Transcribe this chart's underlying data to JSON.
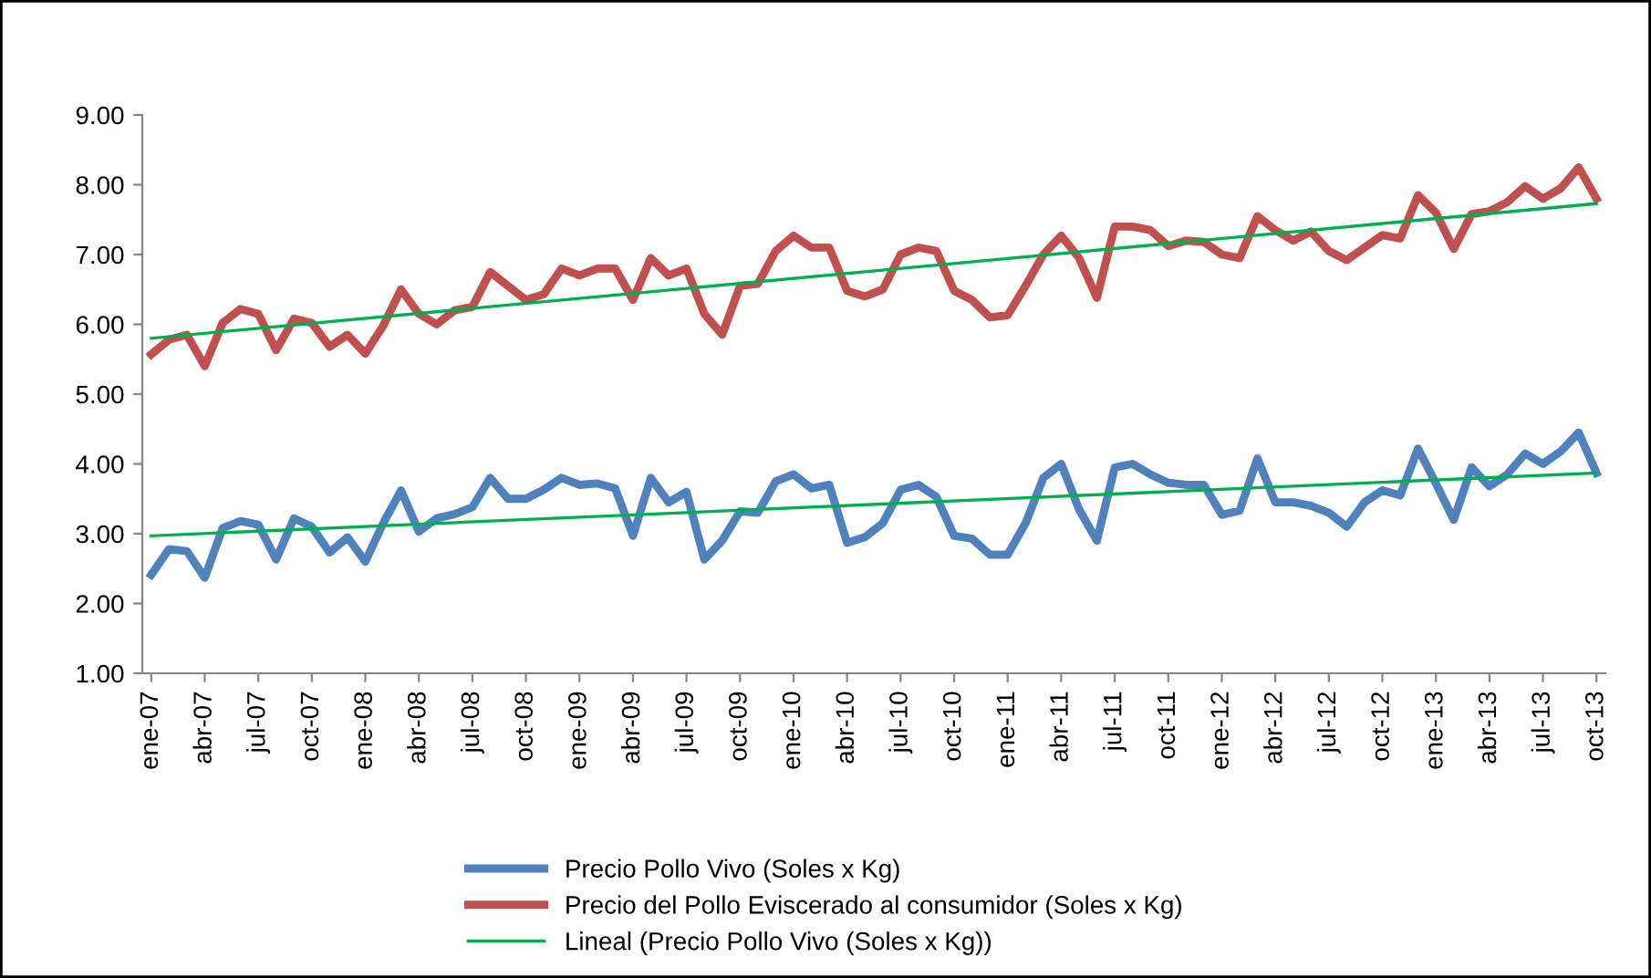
{
  "chart_data": {
    "type": "line",
    "categories": [
      "ene-07",
      null,
      null,
      "abr-07",
      null,
      null,
      "jul-07",
      null,
      null,
      "oct-07",
      null,
      null,
      "ene-08",
      null,
      null,
      "abr-08",
      null,
      null,
      "jul-08",
      null,
      null,
      "oct-08",
      null,
      null,
      "ene-09",
      null,
      null,
      "abr-09",
      null,
      null,
      "jul-09",
      null,
      null,
      "oct-09",
      null,
      null,
      "ene-10",
      null,
      null,
      "abr-10",
      null,
      null,
      "jul-10",
      null,
      null,
      "oct-10",
      null,
      null,
      "ene-11",
      null,
      null,
      "abr-11",
      null,
      null,
      "jul-11",
      null,
      null,
      "oct-11",
      null,
      null,
      "ene-12",
      null,
      null,
      "abr-12",
      null,
      null,
      "jul-12",
      null,
      null,
      "oct-12",
      null,
      null,
      "ene-13",
      null,
      null,
      "abr-13",
      null,
      null,
      "jul-13",
      null,
      null,
      "oct-13"
    ],
    "series": [
      {
        "name": "Precio Pollo Vivo (Soles x Kg)",
        "color": "#4f81bd",
        "values": [
          2.41,
          2.78,
          2.75,
          2.37,
          3.08,
          3.18,
          3.13,
          2.63,
          3.22,
          3.1,
          2.73,
          2.95,
          2.6,
          3.15,
          3.62,
          3.03,
          3.22,
          3.28,
          3.38,
          3.8,
          3.5,
          3.5,
          3.63,
          3.8,
          3.7,
          3.72,
          3.65,
          2.97,
          3.8,
          3.45,
          3.6,
          2.63,
          2.9,
          3.32,
          3.3,
          3.75,
          3.85,
          3.65,
          3.7,
          2.87,
          2.95,
          3.15,
          3.63,
          3.7,
          3.53,
          2.97,
          2.93,
          2.7,
          2.7,
          3.15,
          3.8,
          4.0,
          3.35,
          2.9,
          3.95,
          4.0,
          3.85,
          3.73,
          3.7,
          3.7,
          3.27,
          3.33,
          4.08,
          3.45,
          3.45,
          3.4,
          3.3,
          3.1,
          3.45,
          3.62,
          3.55,
          4.22,
          3.72,
          3.2,
          3.95,
          3.68,
          3.85,
          4.15,
          4.0,
          4.18,
          4.45,
          3.87
        ]
      },
      {
        "name": "Precio del Pollo Eviscerado al consumidor (Soles x Kg)",
        "color": "#c0504d",
        "values": [
          5.57,
          5.78,
          5.85,
          5.4,
          6.02,
          6.22,
          6.15,
          5.63,
          6.08,
          6.02,
          5.68,
          5.85,
          5.58,
          5.98,
          6.5,
          6.15,
          6.0,
          6.2,
          6.25,
          6.75,
          6.55,
          6.35,
          6.43,
          6.8,
          6.7,
          6.8,
          6.8,
          6.35,
          6.95,
          6.7,
          6.8,
          6.15,
          5.85,
          6.55,
          6.58,
          7.05,
          7.27,
          7.1,
          7.1,
          6.48,
          6.4,
          6.5,
          7.0,
          7.1,
          7.05,
          6.48,
          6.35,
          6.1,
          6.13,
          6.55,
          7.0,
          7.27,
          6.95,
          6.38,
          7.4,
          7.4,
          7.35,
          7.12,
          7.2,
          7.18,
          7.0,
          6.95,
          7.55,
          7.35,
          7.2,
          7.33,
          7.05,
          6.92,
          7.1,
          7.28,
          7.23,
          7.85,
          7.6,
          7.08,
          7.58,
          7.62,
          7.75,
          7.98,
          7.8,
          7.95,
          8.25,
          7.8
        ]
      },
      {
        "name": "Lineal (Precio Pollo Vivo (Soles x Kg))",
        "color": "#00b050",
        "x": [
          "ene-07",
          "oct-13"
        ],
        "values": [
          2.97,
          3.87
        ]
      },
      {
        "color": "#00b050",
        "x": [
          "ene-07",
          "oct-13"
        ],
        "values": [
          5.8,
          7.73
        ]
      }
    ],
    "ylim": [
      1,
      9
    ],
    "yticks": [
      {
        "value": 1,
        "label": "1.00"
      },
      {
        "value": 2,
        "label": "2.00"
      },
      {
        "value": 3,
        "label": "3.00"
      },
      {
        "value": 4,
        "label": "4.00"
      },
      {
        "value": 5,
        "label": "5.00"
      },
      {
        "value": 6,
        "label": "6.00"
      },
      {
        "value": 7,
        "label": "7.00"
      },
      {
        "value": 8,
        "label": "8.00"
      },
      {
        "value": 9,
        "label": "9.00"
      }
    ],
    "grid": false,
    "legend": "bottom",
    "marker": "none",
    "line_style": "solid"
  }
}
